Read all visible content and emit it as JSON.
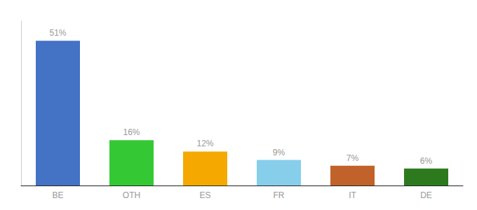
{
  "chart_data": {
    "type": "bar",
    "categories": [
      "BE",
      "OTH",
      "ES",
      "FR",
      "IT",
      "DE"
    ],
    "values": [
      51,
      16,
      12,
      9,
      7,
      6
    ],
    "value_labels": [
      "51%",
      "16%",
      "12%",
      "9%",
      "7%",
      "6%"
    ],
    "colors": [
      "#4472c4",
      "#34c934",
      "#f5a800",
      "#87ceeb",
      "#c0622a",
      "#2d7a1e"
    ],
    "ylim": [
      0,
      58
    ],
    "grid": false,
    "data_labels": true,
    "tick_labels": "x"
  }
}
